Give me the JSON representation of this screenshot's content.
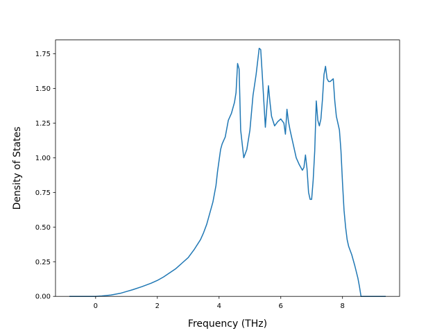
{
  "chart_data": {
    "type": "line",
    "title": "",
    "xlabel": "Frequency (THz)",
    "ylabel": "Density of States",
    "xlim": [
      -1.3,
      9.85
    ],
    "ylim": [
      0,
      1.85
    ],
    "grid": false,
    "xticks": [
      0,
      2,
      4,
      6,
      8
    ],
    "yticks": [
      0.0,
      0.25,
      0.5,
      0.75,
      1.0,
      1.25,
      1.5,
      1.75
    ],
    "xtick_labels": [
      "0",
      "2",
      "4",
      "6",
      "8"
    ],
    "ytick_labels": [
      "0.00",
      "0.25",
      "0.50",
      "0.75",
      "1.00",
      "1.25",
      "1.50",
      "1.75"
    ],
    "series": [
      {
        "color": "#1f77b4",
        "x": [
          -0.85,
          0.0,
          0.2,
          0.5,
          0.8,
          1.0,
          1.2,
          1.5,
          1.8,
          2.0,
          2.2,
          2.4,
          2.6,
          2.8,
          3.0,
          3.2,
          3.4,
          3.5,
          3.6,
          3.7,
          3.8,
          3.9,
          3.95,
          4.0,
          4.05,
          4.1,
          4.2,
          4.3,
          4.4,
          4.5,
          4.55,
          4.6,
          4.65,
          4.7,
          4.75,
          4.8,
          4.9,
          5.0,
          5.1,
          5.2,
          5.3,
          5.35,
          5.4,
          5.5,
          5.6,
          5.65,
          5.7,
          5.8,
          5.9,
          6.0,
          6.1,
          6.15,
          6.2,
          6.25,
          6.3,
          6.4,
          6.5,
          6.6,
          6.7,
          6.75,
          6.8,
          6.85,
          6.9,
          6.95,
          7.0,
          7.05,
          7.1,
          7.15,
          7.2,
          7.25,
          7.3,
          7.35,
          7.4,
          7.45,
          7.5,
          7.55,
          7.6,
          7.65,
          7.7,
          7.75,
          7.8,
          7.85,
          7.9,
          7.95,
          8.0,
          8.05,
          8.1,
          8.15,
          8.2,
          8.3,
          8.4,
          8.5,
          8.55,
          8.6,
          8.7,
          8.9,
          9.4
        ],
        "y": [
          0.0,
          0.0,
          0.003,
          0.01,
          0.022,
          0.035,
          0.048,
          0.07,
          0.095,
          0.115,
          0.14,
          0.17,
          0.2,
          0.24,
          0.28,
          0.34,
          0.41,
          0.46,
          0.52,
          0.6,
          0.68,
          0.8,
          0.9,
          0.98,
          1.06,
          1.1,
          1.15,
          1.27,
          1.32,
          1.4,
          1.47,
          1.68,
          1.64,
          1.2,
          1.1,
          1.0,
          1.06,
          1.2,
          1.45,
          1.6,
          1.79,
          1.78,
          1.6,
          1.22,
          1.52,
          1.4,
          1.3,
          1.23,
          1.26,
          1.28,
          1.25,
          1.17,
          1.35,
          1.26,
          1.2,
          1.1,
          1.0,
          0.95,
          0.91,
          0.93,
          1.02,
          0.92,
          0.75,
          0.7,
          0.7,
          0.84,
          1.05,
          1.41,
          1.27,
          1.23,
          1.28,
          1.42,
          1.6,
          1.66,
          1.57,
          1.55,
          1.55,
          1.56,
          1.57,
          1.41,
          1.3,
          1.25,
          1.2,
          1.05,
          0.82,
          0.62,
          0.5,
          0.41,
          0.36,
          0.3,
          0.22,
          0.13,
          0.07,
          0.0,
          0.0,
          0.0,
          0.0
        ]
      }
    ]
  }
}
